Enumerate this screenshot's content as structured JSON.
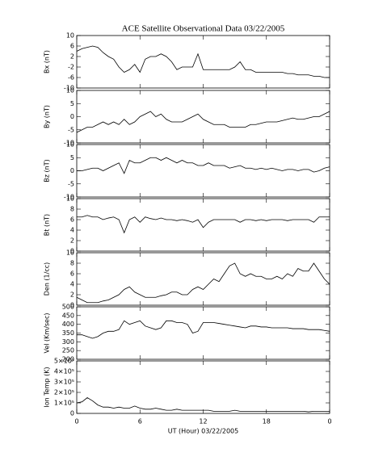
{
  "chart_data": [
    {
      "type": "line",
      "title": "ACE Satellite Observational Data   03/22/2005",
      "ylabel": "Bx (nT)",
      "color": "#000000",
      "x": [
        0,
        0.5,
        1,
        1.5,
        2,
        2.5,
        3,
        3.5,
        4,
        4.5,
        5,
        5.5,
        6,
        6.5,
        7,
        7.5,
        8,
        8.5,
        9,
        9.5,
        10,
        10.5,
        11,
        11.5,
        12,
        12.5,
        13,
        13.5,
        14,
        14.5,
        15,
        15.5,
        16,
        16.5,
        17,
        17.5,
        18,
        18.5,
        19,
        19.5,
        20,
        20.5,
        21,
        21.5,
        22,
        22.5,
        23,
        23.5,
        24
      ],
      "values": [
        4,
        5,
        5.5,
        6,
        5.5,
        3.5,
        2,
        1,
        -2,
        -4,
        -3,
        -1,
        -4,
        1,
        2,
        2,
        3,
        2,
        0,
        -3,
        -2,
        -2,
        -2,
        3,
        -3,
        -3,
        -3,
        -3,
        -3,
        -3,
        -2,
        0,
        -3,
        -3,
        -4,
        -4,
        -4,
        -4,
        -4,
        -4,
        -4.5,
        -4.5,
        -5,
        -5,
        -5,
        -5.5,
        -5.5,
        -6,
        -6
      ],
      "xlim": [
        0,
        24
      ],
      "ylim": [
        -10,
        10
      ],
      "yticks": [
        -10,
        -6,
        -2,
        2,
        6,
        10
      ]
    },
    {
      "type": "line",
      "ylabel": "By (nT)",
      "color": "#000000",
      "x": [
        0,
        0.5,
        1,
        1.5,
        2,
        2.5,
        3,
        3.5,
        4,
        4.5,
        5,
        5.5,
        6,
        6.5,
        7,
        7.5,
        8,
        8.5,
        9,
        9.5,
        10,
        10.5,
        11,
        11.5,
        12,
        12.5,
        13,
        13.5,
        14,
        14.5,
        15,
        15.5,
        16,
        16.5,
        17,
        17.5,
        18,
        18.5,
        19,
        19.5,
        20,
        20.5,
        21,
        21.5,
        22,
        22.5,
        23,
        23.5,
        24
      ],
      "values": [
        -6,
        -5,
        -4,
        -4,
        -3,
        -2,
        -3,
        -2,
        -3,
        -1,
        -3,
        -2,
        0,
        1,
        2,
        0,
        1,
        -1,
        -2,
        -2,
        -2,
        -1,
        0,
        1,
        -1,
        -2,
        -3,
        -3,
        -3,
        -4,
        -4,
        -4,
        -4,
        -3,
        -3,
        -2.5,
        -2,
        -2,
        -2,
        -1.5,
        -1,
        -0.5,
        -1,
        -1,
        -0.5,
        0,
        0,
        1,
        2
      ],
      "xlim": [
        0,
        24
      ],
      "ylim": [
        -10,
        10
      ],
      "yticks": [
        -10,
        -5,
        0,
        5,
        10
      ]
    },
    {
      "type": "line",
      "ylabel": "Bz (nT)",
      "color": "#000000",
      "x": [
        0,
        0.5,
        1,
        1.5,
        2,
        2.5,
        3,
        3.5,
        4,
        4.5,
        5,
        5.5,
        6,
        6.5,
        7,
        7.5,
        8,
        8.5,
        9,
        9.5,
        10,
        10.5,
        11,
        11.5,
        12,
        12.5,
        13,
        13.5,
        14,
        14.5,
        15,
        15.5,
        16,
        16.5,
        17,
        17.5,
        18,
        18.5,
        19,
        19.5,
        20,
        20.5,
        21,
        21.5,
        22,
        22.5,
        23,
        23.5,
        24
      ],
      "values": [
        0,
        0,
        0.5,
        1,
        1,
        0,
        1,
        2,
        3,
        -1,
        4,
        3,
        3,
        4,
        5,
        5,
        4,
        5,
        4,
        3,
        4,
        3,
        3,
        2,
        2,
        3,
        2,
        2,
        2,
        1,
        1.5,
        2,
        1,
        1,
        0.5,
        1,
        0.5,
        1,
        0.5,
        0,
        0.5,
        0.5,
        0,
        0.5,
        0.5,
        -0.5,
        0,
        1,
        1.5
      ],
      "xlim": [
        0,
        24
      ],
      "ylim": [
        -10,
        10
      ],
      "yticks": [
        -10,
        -5,
        0,
        5,
        10
      ]
    },
    {
      "type": "line",
      "ylabel": "Bt (nT)",
      "color": "#000000",
      "x": [
        0,
        0.5,
        1,
        1.5,
        2,
        2.5,
        3,
        3.5,
        4,
        4.5,
        5,
        5.5,
        6,
        6.5,
        7,
        7.5,
        8,
        8.5,
        9,
        9.5,
        10,
        10.5,
        11,
        11.5,
        12,
        12.5,
        13,
        13.5,
        14,
        14.5,
        15,
        15.5,
        16,
        16.5,
        17,
        17.5,
        18,
        18.5,
        19,
        19.5,
        20,
        20.5,
        21,
        21.5,
        22,
        22.5,
        23,
        23.5,
        24
      ],
      "values": [
        6.5,
        6.5,
        6.8,
        6.5,
        6.5,
        6,
        6.3,
        6.5,
        6,
        3.5,
        6,
        6.5,
        5.5,
        6.5,
        6.2,
        6,
        6.3,
        6,
        6,
        5.8,
        6,
        5.8,
        5.5,
        6,
        4.5,
        5.5,
        6,
        6,
        6,
        6,
        6,
        5.5,
        6,
        6,
        5.8,
        6,
        5.8,
        6,
        6,
        6,
        5.8,
        6,
        6,
        6,
        6,
        5.5,
        6.5,
        6.5,
        6.5
      ],
      "xlim": [
        0,
        24
      ],
      "ylim": [
        0,
        10
      ],
      "yticks": [
        0,
        2,
        4,
        6,
        8,
        10
      ]
    },
    {
      "type": "line",
      "ylabel": "Den (1/cc)",
      "color": "#000000",
      "x": [
        0,
        0.5,
        1,
        1.5,
        2,
        2.5,
        3,
        3.5,
        4,
        4.5,
        5,
        5.5,
        6,
        6.5,
        7,
        7.5,
        8,
        8.5,
        9,
        9.5,
        10,
        10.5,
        11,
        11.5,
        12,
        12.5,
        13,
        13.5,
        14,
        14.5,
        15,
        15.5,
        16,
        16.5,
        17,
        17.5,
        18,
        18.5,
        19,
        19.5,
        20,
        20.5,
        21,
        21.5,
        22,
        22.5,
        23,
        23.5,
        24
      ],
      "values": [
        1.5,
        1,
        0.5,
        0.5,
        0.5,
        0.8,
        1,
        1.5,
        2,
        3,
        3.5,
        2.5,
        2,
        1.5,
        1.5,
        1.5,
        1.8,
        2,
        2.5,
        2.5,
        2,
        2,
        3,
        3.5,
        3,
        4,
        5,
        4.5,
        6,
        7.5,
        8,
        6,
        5.5,
        6,
        5.5,
        5.5,
        5,
        5,
        5.5,
        5,
        6,
        5.5,
        7,
        6.5,
        6.5,
        8,
        6.5,
        5,
        4
      ],
      "xlim": [
        0,
        24
      ],
      "ylim": [
        0,
        10
      ],
      "yticks": [
        0,
        2,
        4,
        6,
        8,
        10
      ]
    },
    {
      "type": "line",
      "ylabel": "Vel (Km/sec)",
      "color": "#000000",
      "x": [
        0,
        0.5,
        1,
        1.5,
        2,
        2.5,
        3,
        3.5,
        4,
        4.5,
        5,
        5.5,
        6,
        6.5,
        7,
        7.5,
        8,
        8.5,
        9,
        9.5,
        10,
        10.5,
        11,
        11.5,
        12,
        12.5,
        13,
        13.5,
        14,
        14.5,
        15,
        15.5,
        16,
        16.5,
        17,
        17.5,
        18,
        18.5,
        19,
        19.5,
        20,
        20.5,
        21,
        21.5,
        22,
        22.5,
        23,
        23.5,
        24
      ],
      "values": [
        340,
        340,
        330,
        320,
        330,
        350,
        360,
        360,
        370,
        420,
        400,
        410,
        420,
        390,
        380,
        370,
        380,
        420,
        420,
        410,
        410,
        400,
        350,
        360,
        410,
        410,
        410,
        405,
        400,
        395,
        390,
        385,
        380,
        390,
        390,
        385,
        385,
        380,
        380,
        380,
        380,
        375,
        375,
        375,
        370,
        370,
        370,
        365,
        360
      ],
      "xlim": [
        0,
        24
      ],
      "ylim": [
        200,
        500
      ],
      "yticks": [
        200,
        250,
        300,
        350,
        400,
        450,
        500
      ]
    },
    {
      "type": "line",
      "ylabel": "Ion Temp (K)",
      "xlabel": "UT (Hour)   03/22/2005",
      "color": "#000000",
      "x": [
        0,
        0.5,
        1,
        1.5,
        2,
        2.5,
        3,
        3.5,
        4,
        4.5,
        5,
        5.5,
        6,
        6.5,
        7,
        7.5,
        8,
        8.5,
        9,
        9.5,
        10,
        10.5,
        11,
        11.5,
        12,
        12.5,
        13,
        13.5,
        14,
        14.5,
        15,
        15.5,
        16,
        16.5,
        17,
        17.5,
        18,
        18.5,
        19,
        19.5,
        20,
        20.5,
        21,
        21.5,
        22,
        22.5,
        23,
        23.5,
        24
      ],
      "values": [
        100000,
        110000,
        150000,
        120000,
        80000,
        60000,
        60000,
        50000,
        60000,
        50000,
        50000,
        70000,
        50000,
        40000,
        40000,
        50000,
        40000,
        30000,
        30000,
        40000,
        30000,
        30000,
        30000,
        30000,
        30000,
        30000,
        20000,
        20000,
        20000,
        20000,
        30000,
        20000,
        20000,
        20000,
        20000,
        20000,
        20000,
        20000,
        20000,
        20000,
        20000,
        20000,
        20000,
        20000,
        15000,
        20000,
        20000,
        20000,
        20000
      ],
      "xlim": [
        0,
        24
      ],
      "ylim": [
        0,
        500000
      ],
      "yticks": [
        0,
        {
          "value": 100000,
          "label": "1×10⁵"
        },
        {
          "value": 200000,
          "label": "2×10⁵"
        },
        {
          "value": 300000,
          "label": "3×10⁵"
        },
        {
          "value": 400000,
          "label": "4×10⁵"
        },
        {
          "value": 500000,
          "label": "5×10⁵"
        }
      ],
      "xticks": [
        0,
        6,
        12,
        18,
        {
          "value": 24,
          "label": "0"
        }
      ]
    }
  ]
}
